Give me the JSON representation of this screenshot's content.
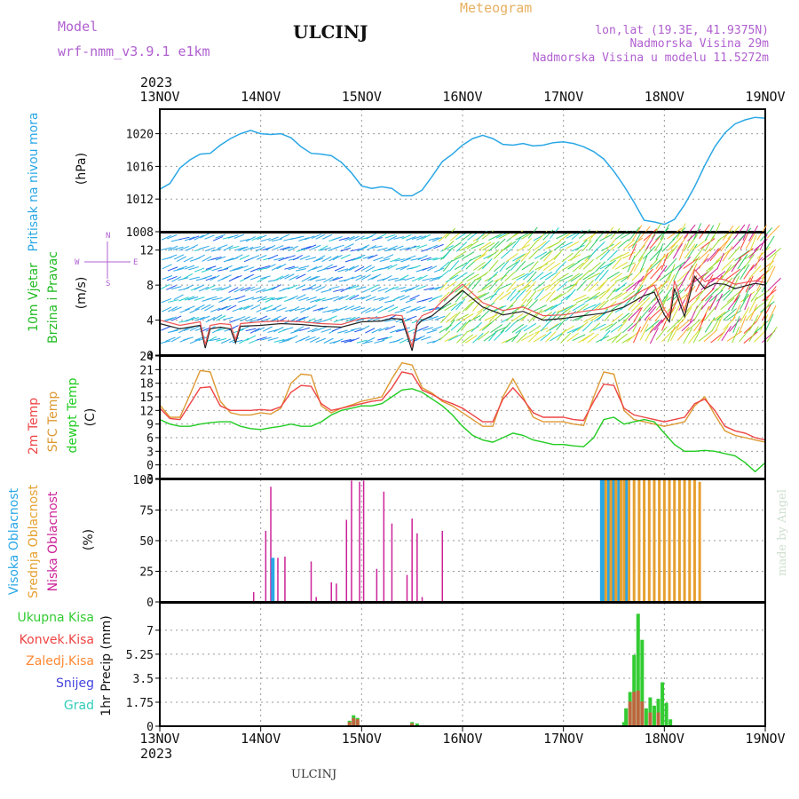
{
  "header": {
    "model_label": "Model",
    "model_name": "wrf-nmm_v3.9.1  e1km",
    "station": "ULCINJ",
    "product": "Meteogram",
    "lonlat": "lon,lat (19.3E, 41.9375N)",
    "elevation": "Nadmorska Visina 29m",
    "model_elevation": "Nadmorska Visina u modelu 11.5272m"
  },
  "time_axis": {
    "year": "2023",
    "ticks": [
      "13NOV",
      "14NOV",
      "15NOV",
      "16NOV",
      "17NOV",
      "18NOV",
      "19NOV"
    ]
  },
  "footer": {
    "station": "ULCINJ",
    "watermark": "made by Angel"
  },
  "colors": {
    "pressure": "#2aa7e6",
    "wind_label": "#22bb22",
    "temp2m": "#ee4444",
    "sfc": "#dd9933",
    "dewpt": "#22cc22",
    "cloud_high": "#2aa7e6",
    "cloud_mid": "#e6a030",
    "cloud_low": "#cc2299",
    "precip_total": "#33cc33",
    "precip_conv": "#ee4444",
    "precip_frozen": "#ff8833",
    "snow": "#4444dd",
    "hail": "#33ccbb"
  },
  "chart_data": [
    {
      "type": "line",
      "panel": "pressure",
      "ylabel_main": "Pritisak na nivou mora",
      "ylabel_unit": "(hPa)",
      "ylim": [
        1008,
        1023
      ],
      "yticks": [
        1008,
        1012,
        1016,
        1020
      ],
      "x_days": [
        0,
        0.1,
        0.2,
        0.3,
        0.4,
        0.5,
        0.6,
        0.7,
        0.8,
        0.9,
        1.0,
        1.1,
        1.2,
        1.3,
        1.4,
        1.5,
        1.6,
        1.7,
        1.8,
        1.9,
        2.0,
        2.1,
        2.2,
        2.3,
        2.4,
        2.5,
        2.6,
        2.7,
        2.8,
        2.9,
        3.0,
        3.1,
        3.2,
        3.3,
        3.4,
        3.5,
        3.6,
        3.7,
        3.8,
        3.9,
        4.0,
        4.1,
        4.2,
        4.3,
        4.4,
        4.5,
        4.6,
        4.7,
        4.8,
        4.9,
        5.0,
        5.1,
        5.2,
        5.3,
        5.4,
        5.5,
        5.6,
        5.7,
        5.8,
        5.9,
        6.0
      ],
      "series": [
        {
          "name": "",
          "values": [
            1013.2,
            1013.9,
            1015.8,
            1016.8,
            1017.5,
            1017.6,
            1018.6,
            1019.4,
            1020.0,
            1020.4,
            1020.0,
            1019.9,
            1020.0,
            1019.5,
            1018.4,
            1017.6,
            1017.5,
            1017.3,
            1016.5,
            1015.2,
            1013.6,
            1013.3,
            1013.5,
            1013.3,
            1012.4,
            1012.4,
            1013.1,
            1014.8,
            1016.6,
            1017.5,
            1018.6,
            1019.4,
            1019.8,
            1019.4,
            1018.7,
            1018.6,
            1018.8,
            1018.5,
            1018.6,
            1018.9,
            1019.0,
            1018.8,
            1018.4,
            1017.8,
            1016.9,
            1015.4,
            1013.6,
            1011.6,
            1009.4,
            1009.2,
            1008.9,
            1009.5,
            1011.3,
            1013.5,
            1016.1,
            1018.4,
            1020.1,
            1021.2,
            1021.7,
            1022.0,
            1021.9
          ]
        }
      ]
    },
    {
      "type": "line",
      "panel": "wind",
      "ylabel_main": "10m Vjetar",
      "ylabel_sub": "Brzina i Pravac",
      "ylabel_unit": "(m/s)",
      "compass": {
        "n": "N",
        "s": "S",
        "w": "W",
        "e": "E"
      },
      "ylim": [
        0,
        14
      ],
      "yticks": [
        0,
        4,
        8,
        12
      ],
      "x_days": [
        0,
        0.2,
        0.4,
        0.45,
        0.5,
        0.6,
        0.7,
        0.75,
        0.8,
        1.0,
        1.2,
        1.4,
        1.6,
        1.8,
        2.0,
        2.2,
        2.3,
        2.4,
        2.5,
        2.55,
        2.6,
        2.7,
        2.8,
        3.0,
        3.2,
        3.4,
        3.6,
        3.8,
        4.0,
        4.2,
        4.4,
        4.6,
        4.8,
        4.9,
        5.0,
        5.05,
        5.1,
        5.2,
        5.3,
        5.4,
        5.5,
        5.6,
        5.7,
        5.8,
        5.9,
        6.0
      ],
      "series": [
        {
          "name": "",
          "values": [
            3.6,
            3.0,
            3.4,
            0.8,
            3.0,
            3.2,
            3.0,
            1.4,
            3.3,
            3.4,
            3.6,
            3.5,
            3.3,
            3.2,
            3.8,
            3.9,
            4.2,
            4.1,
            0.5,
            3.4,
            4.0,
            4.5,
            5.5,
            7.4,
            5.5,
            4.6,
            5.0,
            4.0,
            4.2,
            4.5,
            4.8,
            5.5,
            6.8,
            7.2,
            4.6,
            3.8,
            7.6,
            4.4,
            9.0,
            7.6,
            8.2,
            8.1,
            7.6,
            7.9,
            8.2,
            8.0
          ]
        },
        {
          "name": "",
          "values": [
            4.0,
            3.4,
            3.8,
            1.2,
            3.4,
            3.6,
            3.5,
            1.8,
            3.6,
            3.8,
            3.9,
            3.8,
            3.6,
            3.5,
            4.2,
            4.3,
            4.6,
            4.5,
            1.0,
            3.8,
            4.5,
            5.0,
            6.2,
            8.1,
            6.0,
            5.1,
            5.5,
            4.5,
            4.6,
            5.0,
            5.3,
            6.1,
            7.5,
            8.0,
            5.2,
            4.4,
            8.5,
            5.0,
            9.8,
            8.4,
            8.8,
            8.6,
            8.1,
            8.3,
            8.5,
            8.3
          ]
        }
      ]
    },
    {
      "type": "line",
      "panel": "temperature",
      "ylabel_labels": [
        "2m Temp",
        "SFC Temp",
        "dewpt Temp"
      ],
      "ylabel_unit": "(C)",
      "ylim": [
        -3,
        24
      ],
      "yticks": [
        -3,
        0,
        3,
        6,
        9,
        12,
        15,
        18,
        21,
        24
      ],
      "x_days": [
        0,
        0.1,
        0.2,
        0.3,
        0.4,
        0.5,
        0.6,
        0.7,
        0.8,
        0.9,
        1.0,
        1.1,
        1.2,
        1.3,
        1.4,
        1.5,
        1.6,
        1.7,
        1.8,
        1.9,
        2.0,
        2.1,
        2.2,
        2.3,
        2.4,
        2.5,
        2.6,
        2.7,
        2.8,
        2.9,
        3.0,
        3.1,
        3.2,
        3.3,
        3.4,
        3.5,
        3.6,
        3.7,
        3.8,
        3.9,
        4.0,
        4.1,
        4.2,
        4.3,
        4.4,
        4.5,
        4.6,
        4.7,
        4.8,
        4.9,
        5.0,
        5.1,
        5.2,
        5.3,
        5.4,
        5.5,
        5.6,
        5.7,
        5.8,
        5.9,
        6.0
      ],
      "series": [
        {
          "name": "2m Temp",
          "values": [
            12.5,
            10.2,
            10.0,
            13.5,
            17.0,
            17.2,
            13.0,
            12.0,
            12.0,
            12.0,
            12.2,
            12.0,
            12.8,
            16.0,
            17.5,
            17.3,
            13.5,
            12.0,
            12.5,
            13.0,
            13.5,
            14.0,
            14.3,
            17.0,
            20.5,
            20.0,
            16.5,
            15.5,
            14.3,
            13.5,
            12.5,
            11.0,
            9.5,
            9.5,
            14.5,
            17.0,
            14.5,
            11.5,
            10.5,
            10.5,
            10.5,
            10.0,
            9.8,
            14.0,
            17.8,
            17.5,
            12.5,
            11.0,
            10.5,
            10.0,
            9.5,
            10.0,
            10.5,
            13.5,
            14.5,
            12.0,
            8.5,
            7.5,
            7.0,
            6.0,
            5.5
          ]
        },
        {
          "name": "SFC Temp",
          "values": [
            13.2,
            10.5,
            10.5,
            15.5,
            20.8,
            20.5,
            14.0,
            11.5,
            11.0,
            11.0,
            11.5,
            11.2,
            12.5,
            18.0,
            20.0,
            19.8,
            13.0,
            11.5,
            12.5,
            13.2,
            14.0,
            14.5,
            15.0,
            19.0,
            22.5,
            22.0,
            17.0,
            15.8,
            14.0,
            13.0,
            11.5,
            10.0,
            8.5,
            8.5,
            15.0,
            19.0,
            15.0,
            10.5,
            9.5,
            9.5,
            9.5,
            9.0,
            8.7,
            15.0,
            20.5,
            20.0,
            12.0,
            10.0,
            9.5,
            9.0,
            8.5,
            9.0,
            9.5,
            13.0,
            15.0,
            11.0,
            7.5,
            6.5,
            6.0,
            5.5,
            5.0
          ]
        },
        {
          "name": "dewpt Temp",
          "values": [
            10.0,
            9.0,
            8.5,
            8.5,
            9.0,
            9.3,
            9.5,
            9.5,
            8.5,
            8.0,
            7.8,
            8.2,
            8.5,
            9.0,
            8.5,
            8.5,
            9.5,
            11.0,
            12.0,
            12.5,
            13.0,
            13.0,
            13.5,
            15.0,
            16.5,
            16.8,
            16.0,
            14.5,
            13.0,
            11.0,
            8.5,
            6.5,
            5.5,
            5.0,
            6.0,
            7.0,
            6.5,
            5.5,
            5.0,
            4.5,
            4.5,
            4.2,
            4.0,
            6.0,
            10.0,
            10.5,
            9.0,
            9.5,
            10.0,
            9.5,
            7.0,
            4.5,
            3.0,
            3.0,
            3.2,
            3.0,
            2.5,
            2.0,
            0.5,
            -1.5,
            0.5
          ]
        }
      ]
    },
    {
      "type": "bar",
      "panel": "cloud",
      "ylabel_labels": [
        "Visoka Oblacnost",
        "Srednja Oblacnost",
        "Niska Oblacnost"
      ],
      "ylabel_unit": "(%)",
      "ylim": [
        0,
        100
      ],
      "yticks": [
        0,
        25,
        50,
        75,
        100
      ],
      "series": [
        {
          "name": "Niska Oblacnost",
          "x_days": [
            0.93,
            1.05,
            1.1,
            1.17,
            1.24,
            1.5,
            1.55,
            1.7,
            1.75,
            1.85,
            1.9,
            1.98,
            2.02,
            2.15,
            2.22,
            2.3,
            2.45,
            2.5,
            2.55,
            2.6,
            2.8
          ],
          "values": [
            8,
            58,
            94,
            36,
            37,
            33,
            4,
            16,
            15,
            67,
            99,
            98,
            99,
            27,
            90,
            64,
            22,
            68,
            56,
            4,
            58
          ]
        },
        {
          "name": "Visoka Oblacnost",
          "x_days": [
            1.12,
            4.38,
            4.4,
            4.45,
            4.5,
            4.55,
            4.62
          ],
          "values": [
            36,
            100,
            100,
            100,
            100,
            100,
            100
          ]
        },
        {
          "name": "Srednja Oblacnost",
          "x_days": [
            4.42,
            4.47,
            4.52,
            4.57,
            4.6,
            4.65,
            4.7,
            4.75,
            4.8,
            4.85,
            4.9,
            4.95,
            5.0,
            5.05,
            5.1,
            5.15,
            5.2,
            5.25,
            5.3,
            5.35
          ],
          "values": [
            100,
            100,
            100,
            100,
            100,
            100,
            100,
            100,
            100,
            100,
            100,
            100,
            100,
            100,
            100,
            100,
            100,
            100,
            100,
            98
          ]
        }
      ]
    },
    {
      "type": "bar",
      "panel": "precip",
      "legend": [
        "Ukupna Kisa",
        "Konvek.Kisa",
        "Zaledj.Kisa",
        "Snijeg",
        "Grad"
      ],
      "ylabel_unit": "1hr Precip (mm)",
      "ylim": [
        0,
        9
      ],
      "yticks": [
        0,
        1.75,
        3.5,
        5.25,
        7
      ],
      "series": [
        {
          "name": "Ukupna Kisa",
          "x_days": [
            1.88,
            1.92,
            1.96,
            2.5,
            2.55,
            4.6,
            4.62,
            4.66,
            4.7,
            4.74,
            4.78,
            4.82,
            4.86,
            4.9,
            4.94,
            4.98,
            5.02,
            5.06
          ],
          "values": [
            0.4,
            0.8,
            0.6,
            0.3,
            0.2,
            0.3,
            1.3,
            2.5,
            5.2,
            8.2,
            6.3,
            1.3,
            2.1,
            1.5,
            2.0,
            3.2,
            1.7,
            0.5
          ]
        },
        {
          "name": "Konvek.Kisa",
          "x_days": [
            1.88,
            1.92,
            1.96,
            2.5,
            4.66,
            4.7,
            4.74,
            4.78,
            4.86,
            4.94
          ],
          "values": [
            0.3,
            0.6,
            0.5,
            0.2,
            1.8,
            2.5,
            2.6,
            1.8,
            1.0,
            1.0
          ]
        }
      ]
    }
  ]
}
